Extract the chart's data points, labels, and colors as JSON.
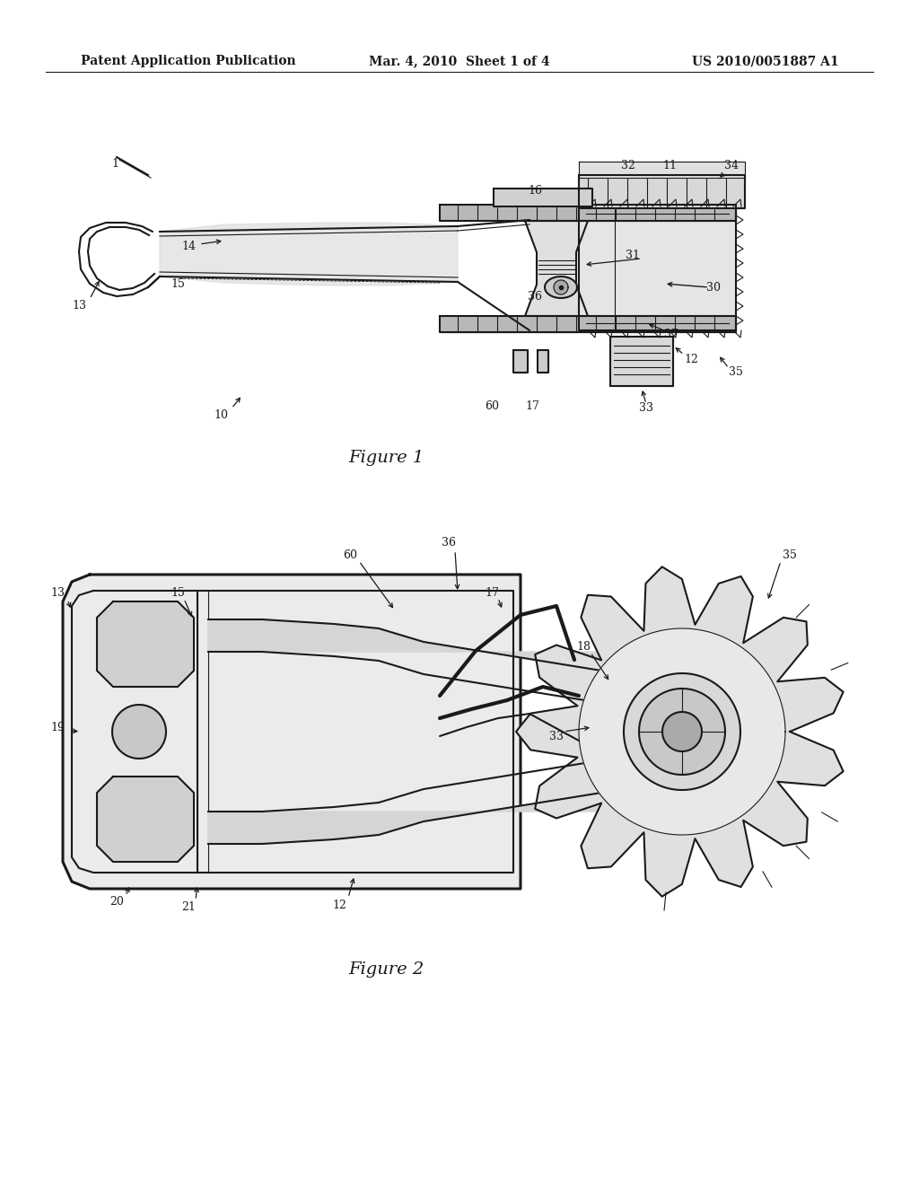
{
  "background_color": "#ffffff",
  "header_left": "Patent Application Publication",
  "header_mid": "Mar. 4, 2010  Sheet 1 of 4",
  "header_right": "US 2010/0051887 A1",
  "fig1_caption": "Figure 1",
  "fig2_caption": "Figure 2",
  "line_color": "#1a1a1a",
  "lw_main": 1.5,
  "lw_thin": 0.8,
  "lw_thick": 2.2,
  "gray_light": "#d8d8d8",
  "gray_mid": "#b8b8b8",
  "gray_dark": "#888888"
}
